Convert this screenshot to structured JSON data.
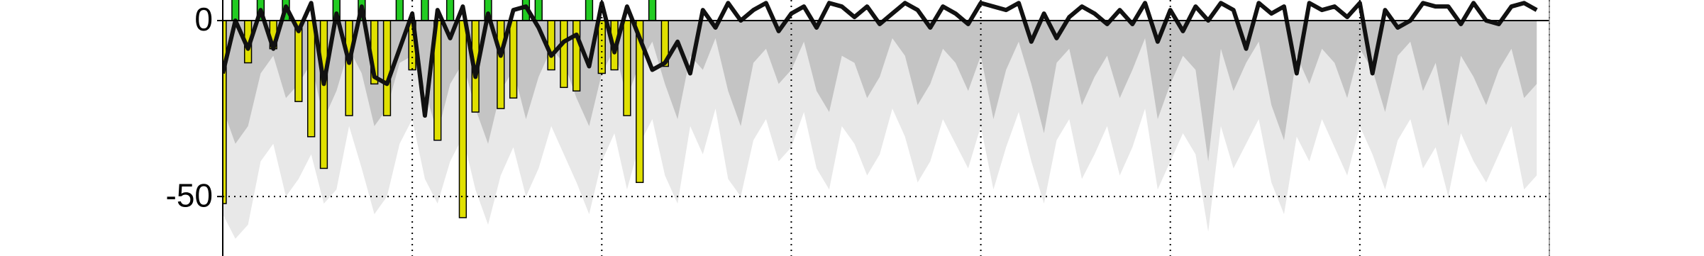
{
  "chart_data": {
    "type": "combo",
    "x": [
      0,
      1,
      2,
      3,
      4,
      5,
      6,
      7,
      8,
      9,
      10,
      11,
      12,
      13,
      14,
      15,
      16,
      17,
      18,
      19,
      20,
      21,
      22,
      23,
      24,
      25,
      26,
      27,
      28,
      29,
      30,
      31,
      32,
      33,
      34,
      35,
      36,
      37,
      38,
      39,
      40,
      41,
      42,
      43,
      44,
      45,
      46,
      47,
      48,
      49,
      50,
      51,
      52,
      53,
      54,
      55,
      56,
      57,
      58,
      59,
      60,
      61,
      62,
      63,
      64,
      65,
      66,
      67,
      68,
      69,
      70,
      71,
      72,
      73,
      74,
      75,
      76,
      77,
      78,
      79,
      80,
      81,
      82,
      83,
      84,
      85,
      86,
      87,
      88,
      89,
      90,
      91,
      92,
      93,
      94,
      95,
      96,
      97,
      98,
      99,
      100,
      101,
      102,
      103,
      104
    ],
    "xlim": [
      0,
      105
    ],
    "xticks": [
      0,
      15,
      30,
      45,
      60,
      75,
      90,
      105
    ],
    "ylim": [
      -66.9,
      5.85
    ],
    "yticks": [
      -50,
      0
    ],
    "grid": true,
    "series": [
      {
        "type": "area",
        "color": "#e8e8e8",
        "values": [
          -55,
          -62,
          -58,
          -40,
          -35,
          -50,
          -45,
          -38,
          -52,
          -48,
          -30,
          -42,
          -55,
          -50,
          -35,
          -28,
          -45,
          -52,
          -40,
          -33,
          -48,
          -58,
          -44,
          -36,
          -50,
          -42,
          -30,
          -38,
          -46,
          -55,
          -40,
          -32,
          -48,
          -35,
          -28,
          -44,
          -52,
          -30,
          -38,
          -25,
          -45,
          -50,
          -34,
          -28,
          -40,
          -36,
          -26,
          -42,
          -48,
          -30,
          -35,
          -44,
          -38,
          -25,
          -33,
          -46,
          -40,
          -28,
          -35,
          -42,
          -30,
          -48,
          -36,
          -26,
          -40,
          -52,
          -34,
          -28,
          -45,
          -38,
          -30,
          -44,
          -36,
          -25,
          -48,
          -40,
          -32,
          -38,
          -60,
          -30,
          -42,
          -35,
          -28,
          -46,
          -55,
          -33,
          -40,
          -28,
          -36,
          -44,
          -30,
          -38,
          -48,
          -34,
          -28,
          -42,
          -36,
          -50,
          -32,
          -40,
          -46,
          -38,
          -30,
          -48,
          -44
        ]
      },
      {
        "type": "area",
        "color": "#c4c4c4",
        "values": [
          -25,
          -35,
          -30,
          -15,
          -10,
          -22,
          -18,
          -12,
          -28,
          -20,
          -8,
          -15,
          -30,
          -25,
          -12,
          -10,
          -20,
          -32,
          -18,
          -12,
          -25,
          -35,
          -20,
          -14,
          -28,
          -16,
          -8,
          -12,
          -22,
          -30,
          -15,
          -8,
          -22,
          -12,
          -6,
          -18,
          -28,
          -10,
          -14,
          -5,
          -20,
          -30,
          -12,
          -8,
          -18,
          -14,
          -6,
          -20,
          -26,
          -10,
          -12,
          -22,
          -16,
          -5,
          -10,
          -24,
          -18,
          -8,
          -12,
          -20,
          -10,
          -28,
          -14,
          -6,
          -18,
          -32,
          -12,
          -8,
          -24,
          -16,
          -10,
          -22,
          -14,
          -5,
          -28,
          -18,
          -10,
          -14,
          -40,
          -8,
          -20,
          -12,
          -6,
          -24,
          -34,
          -10,
          -18,
          -8,
          -12,
          -22,
          -8,
          -14,
          -26,
          -10,
          -6,
          -20,
          -12,
          -30,
          -10,
          -16,
          -24,
          -14,
          -8,
          -22,
          -18
        ]
      },
      {
        "type": "bar",
        "positive_color": "#22cc22",
        "negative_color": "#e0e000",
        "values": [
          -52,
          8,
          -12,
          8,
          -8,
          8,
          -23,
          -33,
          -42,
          8,
          -27,
          8,
          -18,
          -27,
          8,
          -14,
          8,
          -34,
          8,
          -56,
          -26,
          8,
          -25,
          -22,
          8,
          8,
          -14,
          -19,
          -20,
          8,
          -15,
          -14,
          -27,
          -46,
          8,
          -13,
          null,
          null,
          null,
          null,
          null,
          null,
          null,
          null,
          null,
          null,
          null,
          null,
          null,
          null,
          null,
          null,
          null,
          null,
          null,
          null,
          null,
          null,
          null,
          null,
          null,
          null,
          null,
          null,
          null,
          null,
          null,
          null,
          null,
          null,
          null,
          null,
          null,
          null,
          null,
          null,
          null,
          null,
          null,
          null,
          null,
          null,
          null,
          null,
          null,
          null,
          null,
          null,
          null,
          null,
          null,
          null,
          null,
          null,
          null,
          null,
          null,
          null,
          null,
          null,
          null,
          null,
          null,
          null,
          null
        ]
      },
      {
        "type": "line",
        "color": "#111111",
        "values": [
          -15,
          0,
          -8,
          3,
          -8,
          4,
          -3,
          5,
          -18,
          2,
          -12,
          4,
          -16,
          -18,
          -8,
          2,
          -27,
          3,
          -5,
          4,
          -16,
          2,
          -10,
          3,
          4,
          -2,
          -10,
          -6,
          -4,
          -13,
          5,
          -9,
          4,
          -5,
          -14,
          -12,
          -6,
          -15,
          3,
          -2,
          5,
          0,
          3,
          5,
          -3,
          2,
          4,
          -2,
          5,
          4,
          1,
          4,
          -1,
          2,
          5,
          3,
          -2,
          4,
          2,
          -1,
          5,
          4,
          3,
          5,
          -6,
          2,
          -5,
          1,
          4,
          2,
          -1,
          3,
          -1,
          5,
          -6,
          3,
          -3,
          4,
          0,
          5,
          3,
          -8,
          5,
          2,
          4,
          -15,
          5,
          3,
          4,
          1,
          5,
          -15,
          3,
          -2,
          0,
          5,
          4,
          4,
          -1,
          5,
          0,
          -1,
          4,
          5,
          3
        ]
      }
    ]
  }
}
